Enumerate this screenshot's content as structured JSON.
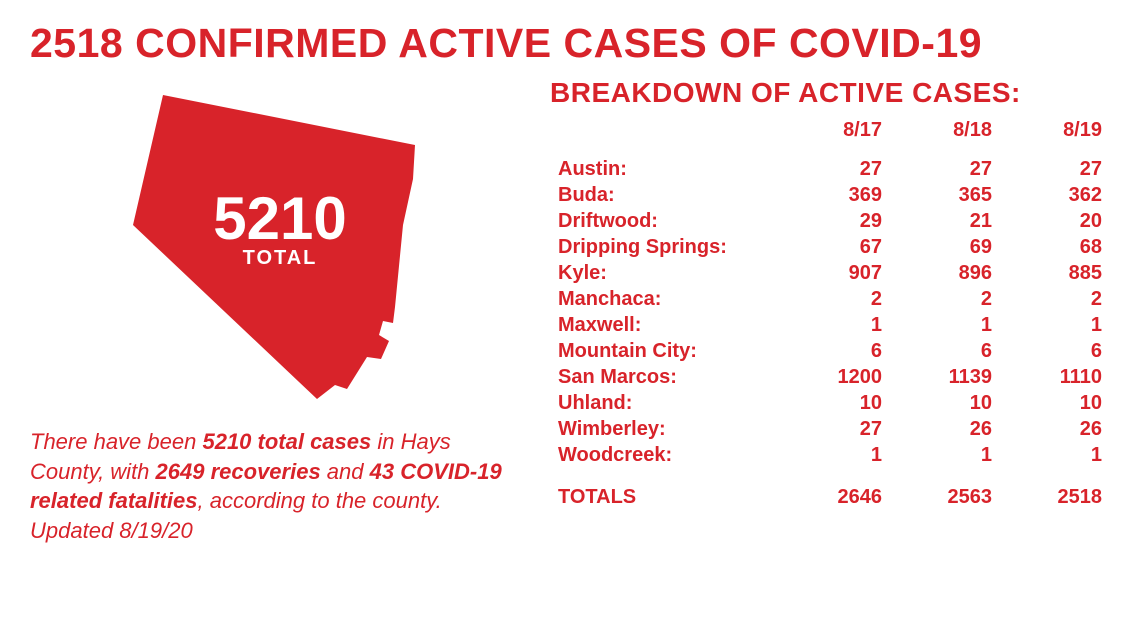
{
  "colors": {
    "brand": "#d8232a",
    "text": "#d8232a",
    "background": "#ffffff",
    "shape_fill": "#d8232a",
    "on_shape_text": "#ffffff"
  },
  "typography": {
    "headline_fontsize": 41,
    "headline_weight": 800,
    "breakdown_title_fontsize": 28,
    "summary_fontsize": 22,
    "table_fontsize": 20,
    "county_big_fontsize": 60,
    "county_sub_fontsize": 20
  },
  "headline": "2518 CONFIRMED ACTIVE CASES OF COVID-19",
  "county_shape": {
    "total_number": "5210",
    "total_label": "TOTAL"
  },
  "summary": {
    "pre": "There have been ",
    "bold1": "5210 total cases",
    "mid1": " in Hays County, with ",
    "bold2": "2649 recoveries",
    "mid2": " and ",
    "bold3": "43 COVID-19 related fatalities",
    "post": ", according to the county. Updated 8/19/20"
  },
  "breakdown": {
    "title": "BREAKDOWN OF ACTIVE CASES:",
    "type": "table",
    "date_columns": [
      "8/17",
      "8/18",
      "8/19"
    ],
    "rows": [
      {
        "city": "Austin:",
        "values": [
          "27",
          "27",
          "27"
        ]
      },
      {
        "city": "Buda:",
        "values": [
          "369",
          "365",
          "362"
        ]
      },
      {
        "city": "Driftwood:",
        "values": [
          "29",
          "21",
          "20"
        ]
      },
      {
        "city": "Dripping Springs:",
        "values": [
          "67",
          "69",
          "68"
        ]
      },
      {
        "city": "Kyle:",
        "values": [
          "907",
          "896",
          "885"
        ]
      },
      {
        "city": "Manchaca:",
        "values": [
          "2",
          "2",
          "2"
        ]
      },
      {
        "city": "Maxwell:",
        "values": [
          "1",
          "1",
          "1"
        ]
      },
      {
        "city": "Mountain City:",
        "values": [
          "6",
          "6",
          "6"
        ]
      },
      {
        "city": "San Marcos:",
        "values": [
          "1200",
          "1139",
          "1110"
        ]
      },
      {
        "city": "Uhland:",
        "values": [
          "10",
          "10",
          "10"
        ]
      },
      {
        "city": "Wimberley:",
        "values": [
          "27",
          "26",
          "26"
        ]
      },
      {
        "city": "Woodcreek:",
        "values": [
          "1",
          "1",
          "1"
        ]
      }
    ],
    "totals": {
      "label": "TOTALS",
      "values": [
        "2646",
        "2563",
        "2518"
      ]
    }
  }
}
